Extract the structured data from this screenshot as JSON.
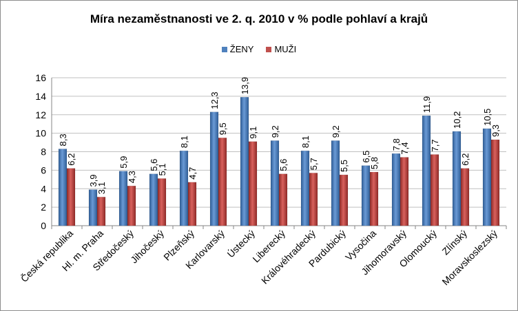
{
  "chart_data": {
    "type": "bar",
    "title": "Míra nezaměstnanosti ve 2. q. 2010 v % podle pohlaví a krajů",
    "categories": [
      "Česká republika",
      "Hl. m. Praha",
      "Středočeský",
      "Jihočeský",
      "Plzeňský",
      "Karlovarský",
      "Ústecký",
      "Liberecký",
      "Královéhradecký",
      "Pardubický",
      "Vysočina",
      "Jihomoravský",
      "Olomoucký",
      "Zlínský",
      "Moravskoslezský"
    ],
    "series": [
      {
        "name": "ŽENY",
        "color": "#4f81bd",
        "values": [
          8.3,
          3.9,
          5.9,
          5.6,
          8.1,
          12.3,
          13.9,
          9.2,
          8.1,
          9.2,
          6.5,
          7.8,
          11.9,
          10.2,
          10.5
        ]
      },
      {
        "name": "MUŽI",
        "color": "#c0504d",
        "values": [
          6.2,
          3.1,
          4.3,
          5.1,
          4.7,
          9.5,
          9.1,
          5.6,
          5.7,
          5.5,
          5.8,
          7.4,
          7.7,
          6.2,
          9.3
        ]
      }
    ],
    "ylim": [
      0,
      16
    ],
    "yticks": [
      0,
      2,
      4,
      6,
      8,
      10,
      12,
      14,
      16
    ],
    "grid": true,
    "legend_position": "top"
  }
}
